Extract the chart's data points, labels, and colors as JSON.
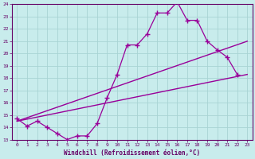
{
  "xlabel": "Windchill (Refroidissement éolien,°C)",
  "xlim": [
    -0.5,
    23.5
  ],
  "ylim": [
    13,
    24
  ],
  "yticks": [
    13,
    14,
    15,
    16,
    17,
    18,
    19,
    20,
    21,
    22,
    23,
    24
  ],
  "xticks": [
    0,
    1,
    2,
    3,
    4,
    5,
    6,
    7,
    8,
    9,
    10,
    11,
    12,
    13,
    14,
    15,
    16,
    17,
    18,
    19,
    20,
    21,
    22,
    23
  ],
  "bg_color": "#c8ecec",
  "grid_color": "#a8d4d4",
  "line_color": "#990099",
  "zigzag_x": [
    0,
    1,
    2,
    3,
    4,
    5,
    6,
    7,
    8,
    9,
    10,
    11,
    12,
    13,
    14,
    15,
    16,
    17,
    18,
    19,
    20,
    21,
    22
  ],
  "zigzag_y": [
    14.7,
    14.1,
    14.5,
    14.0,
    13.5,
    13.0,
    13.3,
    13.3,
    14.3,
    16.4,
    18.3,
    20.7,
    20.7,
    21.6,
    23.3,
    23.3,
    24.2,
    22.7,
    22.7,
    21.0,
    20.3,
    19.7,
    18.3
  ],
  "lower_line_x": [
    0,
    23
  ],
  "lower_line_y": [
    14.5,
    18.3
  ],
  "upper_line_x": [
    0,
    23
  ],
  "upper_line_y": [
    14.5,
    21.0
  ]
}
